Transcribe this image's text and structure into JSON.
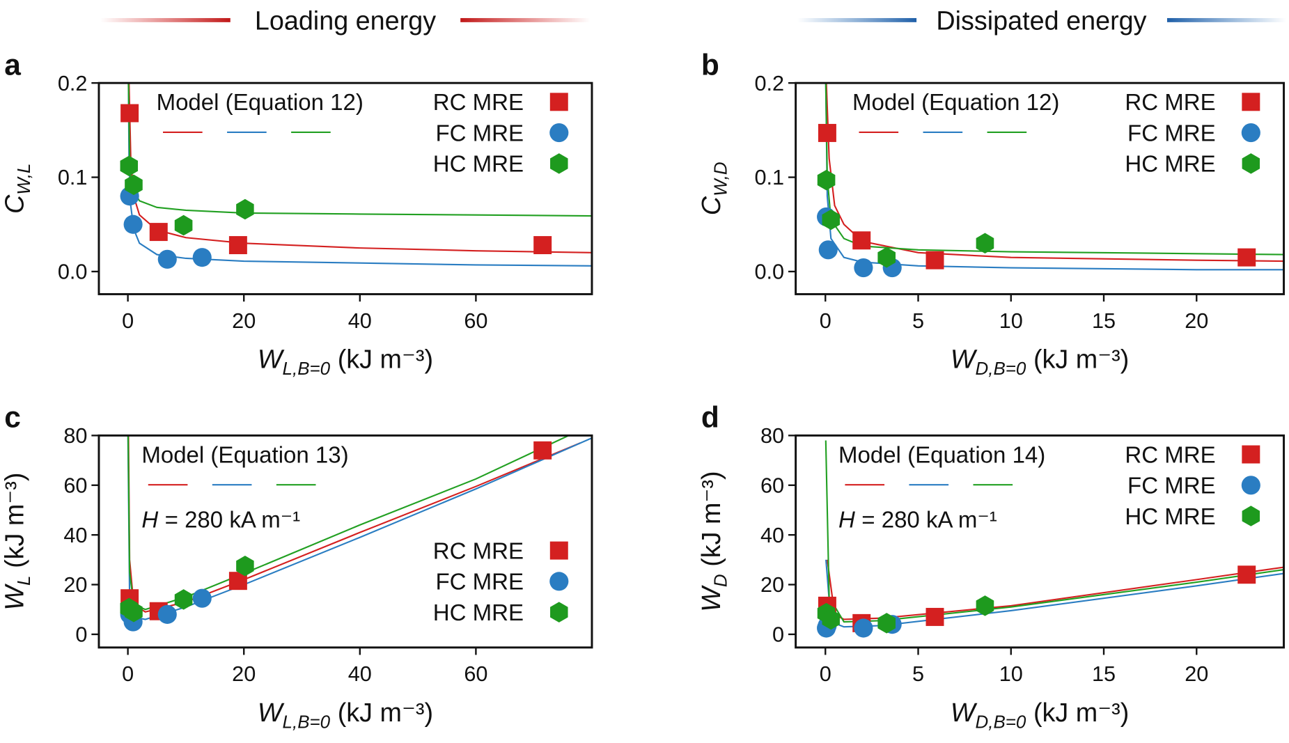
{
  "column_titles": [
    "Loading energy",
    "Dissipated energy"
  ],
  "chart_data": [
    {
      "type": "scatter",
      "panel_label": "a",
      "xlabel": {
        "symbol": "W",
        "subscript": "L,B=0",
        "unit": "(kJ m⁻³)"
      },
      "ylabel": {
        "symbol": "C",
        "subscript": "W,L"
      },
      "model_label": "Model (Equation 12)",
      "xlim": [
        -5,
        80
      ],
      "ylim": [
        -0.024,
        0.2
      ],
      "xticks": [
        0,
        20,
        40,
        60
      ],
      "yticks": [
        {
          "value": 0,
          "label": "0.0"
        },
        0.1,
        0.2
      ],
      "legend_loc": "upper right",
      "series": [
        {
          "name": "RC MRE",
          "color": "#d42020",
          "marker": "square",
          "x": [
            0.3,
            5.3,
            19,
            71.5
          ],
          "values": [
            0.168,
            0.042,
            0.028,
            0.028
          ]
        },
        {
          "name": "FC MRE",
          "color": "#2a7dc2",
          "marker": "circle",
          "x": [
            0.3,
            0.9,
            6.8,
            12.8
          ],
          "values": [
            0.08,
            0.05,
            0.013,
            0.015
          ]
        },
        {
          "name": "HC MRE",
          "color": "#1e9a1e",
          "marker": "hexagon",
          "x": [
            0.2,
            1,
            9.6,
            20.2
          ],
          "values": [
            0.112,
            0.092,
            0.049,
            0.066
          ]
        }
      ],
      "model_lines": [
        {
          "color": "#d42020",
          "x": [
            0.2,
            0.5,
            1,
            2,
            5,
            10,
            20,
            40,
            60,
            80
          ],
          "y": [
            0.2,
            0.12,
            0.08,
            0.06,
            0.044,
            0.036,
            0.03,
            0.025,
            0.022,
            0.02
          ]
        },
        {
          "color": "#2a7dc2",
          "x": [
            0.1,
            0.2,
            0.5,
            1,
            2,
            5,
            10,
            20,
            40,
            60,
            80
          ],
          "y": [
            0.2,
            0.12,
            0.07,
            0.045,
            0.03,
            0.018,
            0.014,
            0.011,
            0.009,
            0.007,
            0.006
          ]
        },
        {
          "color": "#22a022",
          "x": [
            0.1,
            0.3,
            0.5,
            1,
            2,
            5,
            10,
            20,
            40,
            60,
            80
          ],
          "y": [
            0.2,
            0.12,
            0.1,
            0.085,
            0.075,
            0.068,
            0.065,
            0.062,
            0.061,
            0.06,
            0.059
          ]
        }
      ]
    },
    {
      "type": "scatter",
      "panel_label": "b",
      "xlabel": {
        "symbol": "W",
        "subscript": "D,B=0",
        "unit": "(kJ m⁻³)"
      },
      "ylabel": {
        "symbol": "C",
        "subscript": "W,D"
      },
      "model_label": "Model (Equation 12)",
      "xlim": [
        -1.6,
        24.7
      ],
      "ylim": [
        -0.024,
        0.2
      ],
      "xticks": [
        0,
        5,
        10,
        15,
        20
      ],
      "yticks": [
        {
          "value": 0,
          "label": "0.0"
        },
        0.1,
        0.2
      ],
      "legend_loc": "upper right",
      "series": [
        {
          "name": "RC MRE",
          "color": "#d42020",
          "marker": "square",
          "x": [
            0.1,
            1.95,
            5.9,
            22.7
          ],
          "values": [
            0.147,
            0.033,
            0.012,
            0.015
          ]
        },
        {
          "name": "FC MRE",
          "color": "#2a7dc2",
          "marker": "circle",
          "x": [
            0.05,
            0.15,
            2.05,
            3.6
          ],
          "values": [
            0.058,
            0.023,
            0.004,
            0.004
          ]
        },
        {
          "name": "HC MRE",
          "color": "#1e9a1e",
          "marker": "hexagon",
          "x": [
            0.05,
            0.3,
            3.3,
            8.6
          ],
          "values": [
            0.097,
            0.055,
            0.015,
            0.03
          ]
        }
      ],
      "model_lines": [
        {
          "color": "#d42020",
          "x": [
            0.05,
            0.2,
            0.5,
            1,
            2,
            5,
            10,
            20,
            24.7
          ],
          "y": [
            0.2,
            0.12,
            0.07,
            0.05,
            0.032,
            0.02,
            0.015,
            0.012,
            0.011
          ]
        },
        {
          "color": "#2a7dc2",
          "x": [
            0.02,
            0.1,
            0.3,
            1,
            2,
            5,
            10,
            20,
            24.7
          ],
          "y": [
            0.2,
            0.08,
            0.035,
            0.015,
            0.01,
            0.006,
            0.004,
            0.002,
            0.002
          ]
        },
        {
          "color": "#22a022",
          "x": [
            0.02,
            0.1,
            0.3,
            1,
            2,
            5,
            10,
            20,
            24.7
          ],
          "y": [
            0.2,
            0.1,
            0.055,
            0.035,
            0.027,
            0.023,
            0.021,
            0.019,
            0.018
          ]
        }
      ]
    },
    {
      "type": "scatter",
      "panel_label": "c",
      "xlabel": {
        "symbol": "W",
        "subscript": "L,B=0",
        "unit": "(kJ m⁻³)"
      },
      "ylabel": {
        "symbol": "W",
        "subscript": "L",
        "unit": "(kJ m⁻³)"
      },
      "model_label": "Model (Equation 13)",
      "annotation": {
        "symbol": "H",
        "text": "= 280 kA m⁻¹"
      },
      "xlim": [
        -5,
        80
      ],
      "ylim": [
        -5.3,
        80
      ],
      "xticks": [
        0,
        20,
        40,
        60
      ],
      "yticks": [
        0,
        20,
        40,
        60,
        80
      ],
      "legend_loc": "center right",
      "series": [
        {
          "name": "RC MRE",
          "color": "#d42020",
          "marker": "square",
          "x": [
            0.3,
            5.3,
            19,
            71.5
          ],
          "values": [
            14.5,
            9.3,
            21.5,
            74
          ]
        },
        {
          "name": "FC MRE",
          "color": "#2a7dc2",
          "marker": "circle",
          "x": [
            0.3,
            0.9,
            6.8,
            12.8
          ],
          "values": [
            8,
            5,
            8,
            14.5
          ]
        },
        {
          "name": "HC MRE",
          "color": "#1e9a1e",
          "marker": "hexagon",
          "x": [
            0.2,
            1,
            9.6,
            20.2
          ],
          "values": [
            10.5,
            9,
            14,
            27.5
          ]
        }
      ],
      "model_lines": [
        {
          "color": "#d42020",
          "x": [
            0.1,
            0.3,
            1,
            3,
            10,
            20,
            40,
            60,
            78
          ],
          "y": [
            80,
            30,
            12,
            9,
            13,
            22,
            41,
            59.5,
            77
          ]
        },
        {
          "color": "#2a7dc2",
          "x": [
            0.02,
            0.3,
            1,
            3,
            10,
            20,
            40,
            60,
            80
          ],
          "y": [
            80,
            15,
            7,
            6,
            11,
            20,
            39,
            58.5,
            79
          ]
        },
        {
          "color": "#22a022",
          "x": [
            0.05,
            0.3,
            1,
            3,
            10,
            20,
            40,
            60,
            76
          ],
          "y": [
            80,
            25,
            12,
            10,
            15,
            24.5,
            44,
            62.5,
            80
          ]
        }
      ]
    },
    {
      "type": "scatter",
      "panel_label": "d",
      "xlabel": {
        "symbol": "W",
        "subscript": "D,B=0",
        "unit": "(kJ m⁻³)"
      },
      "ylabel": {
        "symbol": "W",
        "subscript": "D",
        "unit": "(kJ m⁻³)"
      },
      "model_label": "Model (Equation 14)",
      "annotation": {
        "symbol": "H",
        "text": "= 280 kA m⁻¹"
      },
      "xlim": [
        -1.6,
        24.7
      ],
      "ylim": [
        -5.3,
        80
      ],
      "xticks": [
        0,
        5,
        10,
        15,
        20
      ],
      "yticks": [
        0,
        20,
        40,
        60,
        80
      ],
      "legend_loc": "upper right",
      "series": [
        {
          "name": "RC MRE",
          "color": "#d42020",
          "marker": "square",
          "x": [
            0.1,
            1.95,
            5.9,
            22.7
          ],
          "values": [
            11.5,
            4.5,
            7,
            24
          ]
        },
        {
          "name": "FC MRE",
          "color": "#2a7dc2",
          "marker": "circle",
          "x": [
            0.05,
            0.1,
            2.05,
            3.6
          ],
          "values": [
            2.5,
            3.5,
            2.5,
            4
          ]
        },
        {
          "name": "HC MRE",
          "color": "#1e9a1e",
          "marker": "hexagon",
          "x": [
            0.05,
            0.3,
            3.3,
            8.6
          ],
          "values": [
            8.5,
            6,
            4.5,
            11.5
          ]
        }
      ],
      "model_lines": [
        {
          "color": "#d42020",
          "x": [
            0.1,
            0.5,
            1,
            3,
            10,
            20,
            24.7
          ],
          "y": [
            30,
            8,
            6,
            6.5,
            11.5,
            22,
            27
          ]
        },
        {
          "color": "#2a7dc2",
          "x": [
            0.03,
            0.3,
            1,
            3,
            10,
            20,
            24.7
          ],
          "y": [
            30,
            5,
            3,
            3.5,
            9.5,
            19.5,
            24.5
          ]
        },
        {
          "color": "#22a022",
          "x": [
            0.02,
            0.2,
            1,
            3,
            10,
            20,
            24.7
          ],
          "y": [
            78,
            15,
            5,
            5.5,
            11,
            21,
            26
          ]
        }
      ]
    }
  ]
}
